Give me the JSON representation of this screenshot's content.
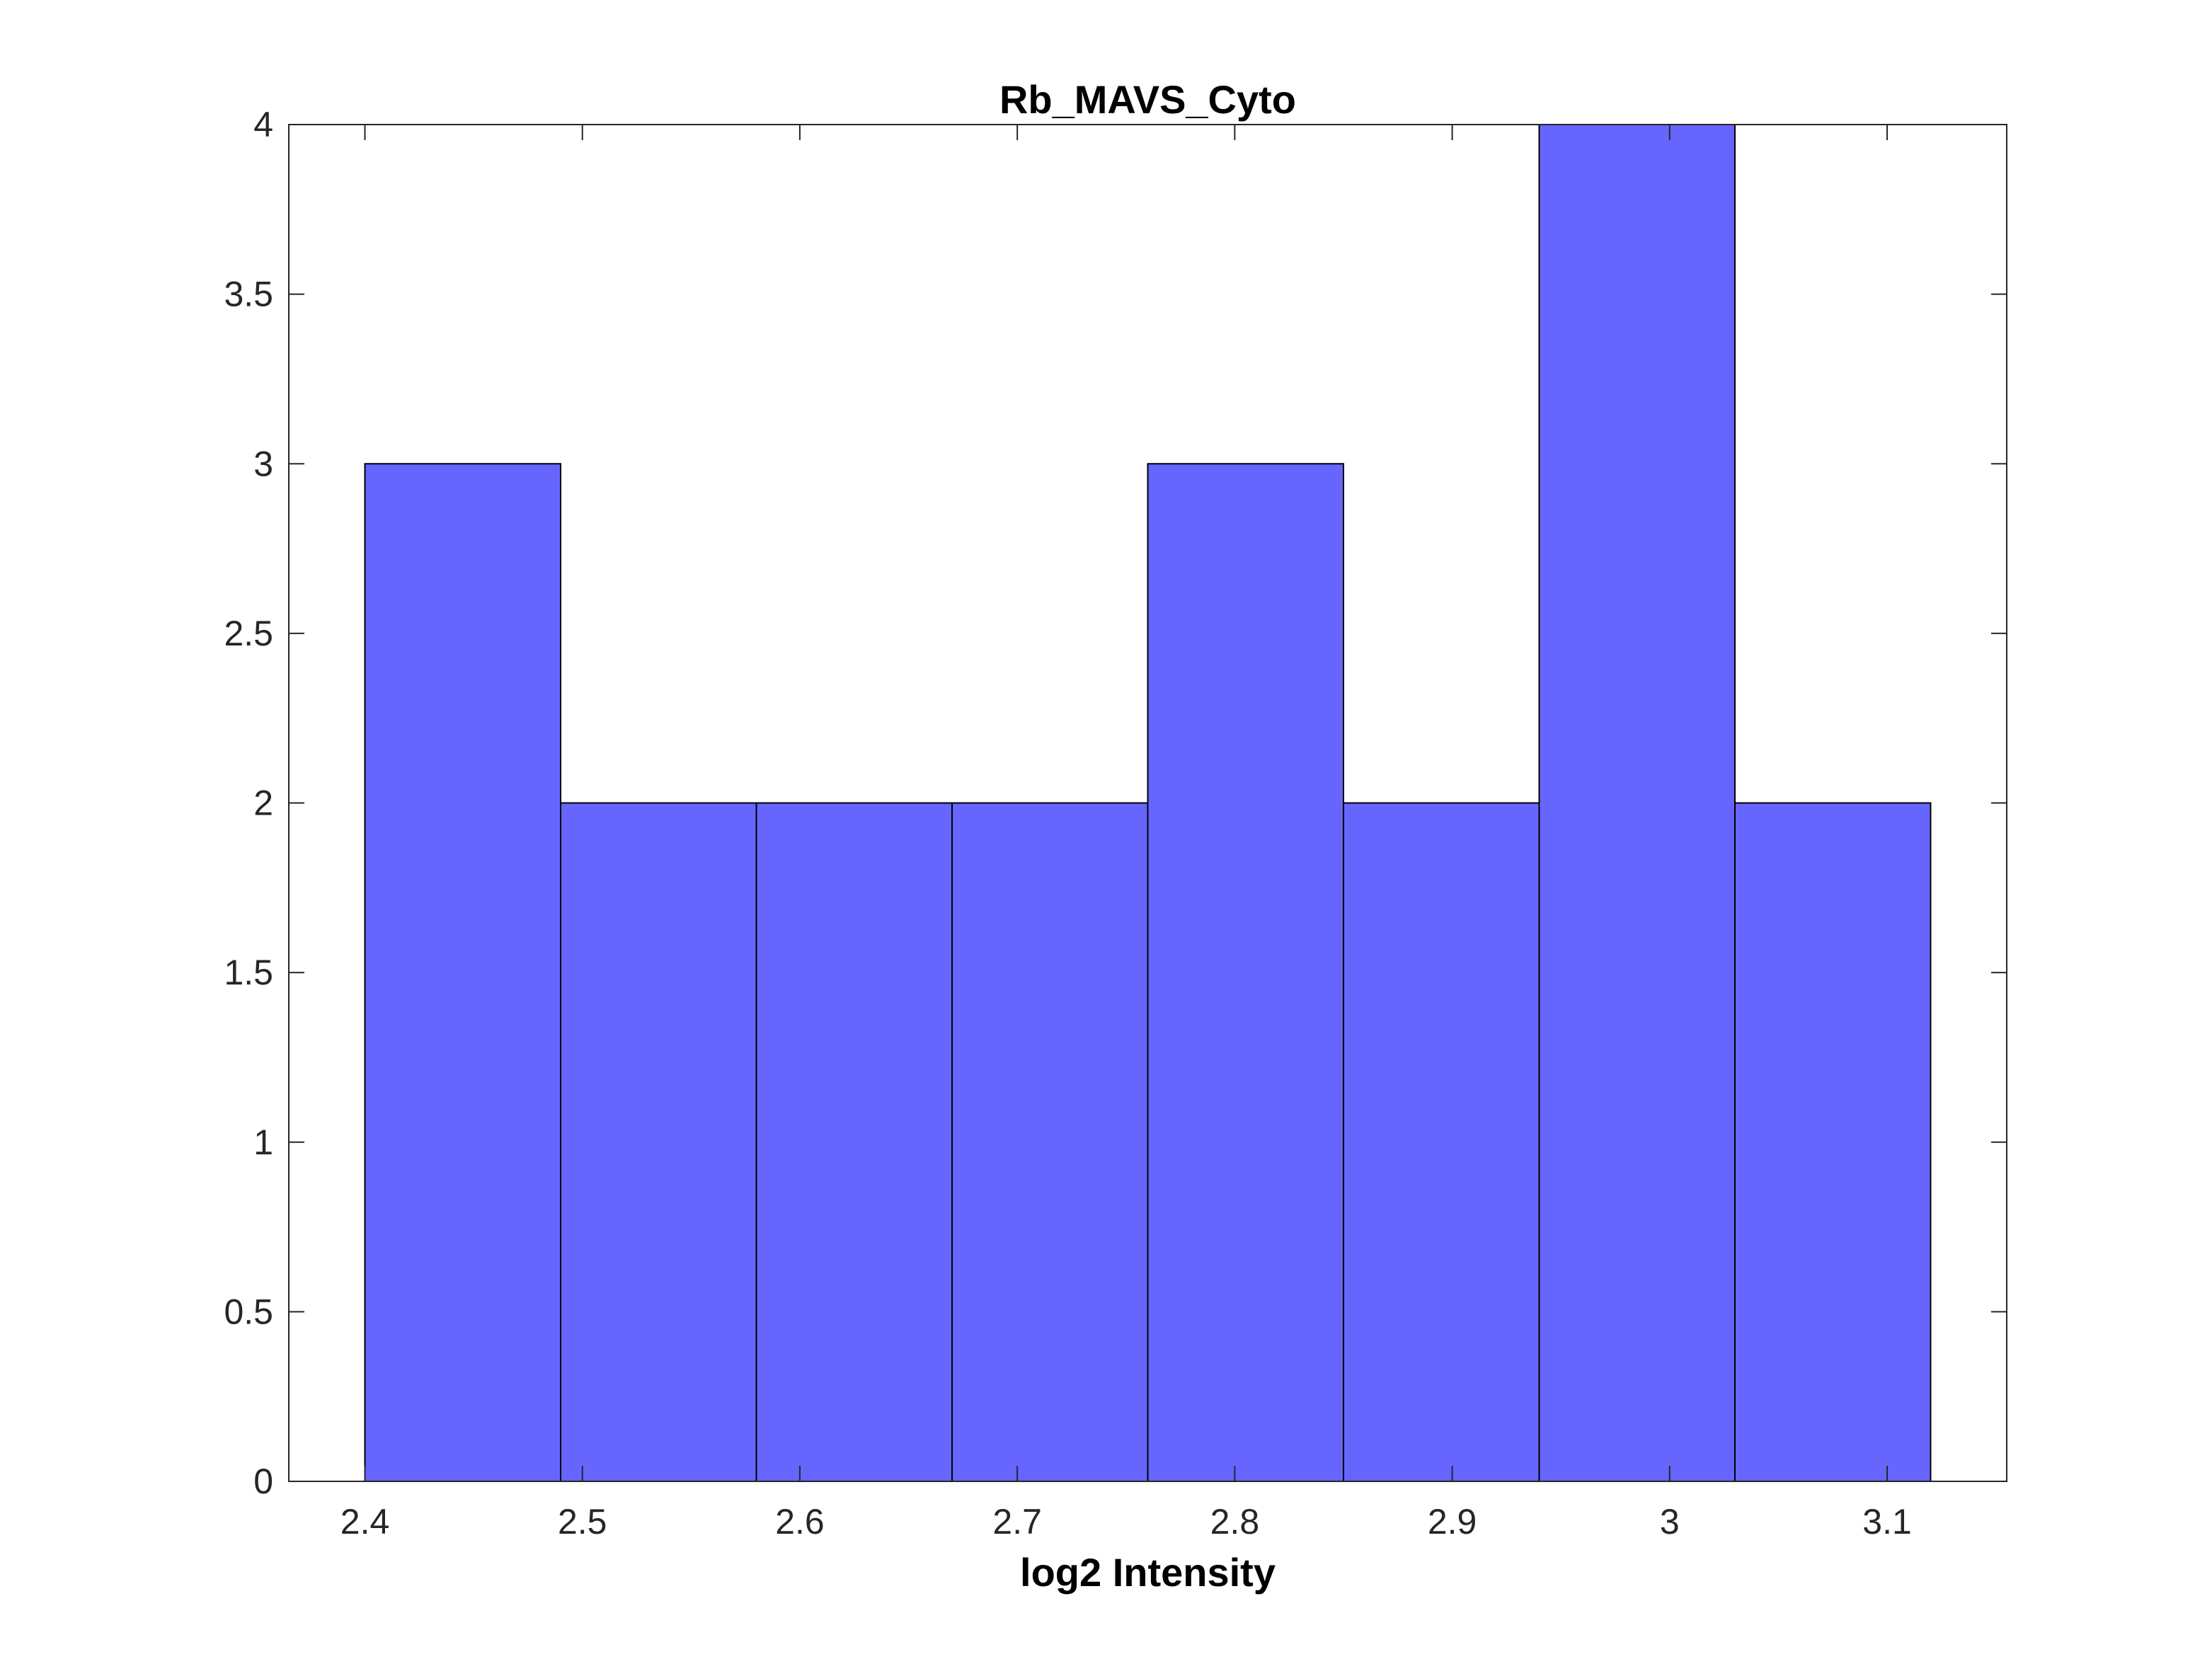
{
  "chart_data": {
    "type": "bar",
    "subtype": "histogram",
    "title": "Rb_MAVS_Cyto",
    "xlabel": "log2 Intensity",
    "ylabel": "",
    "xlim": [
      2.365,
      3.155
    ],
    "ylim": [
      0,
      4
    ],
    "bin_edges": [
      2.4,
      2.49,
      2.58,
      2.67,
      2.76,
      2.85,
      2.94,
      3.03,
      3.12
    ],
    "values": [
      3,
      2,
      2,
      2,
      3,
      2,
      4,
      2
    ],
    "x_ticks": [
      2.4,
      2.5,
      2.6,
      2.7,
      2.8,
      2.9,
      3.0,
      3.1
    ],
    "x_tick_labels": [
      "2.4",
      "2.5",
      "2.6",
      "2.7",
      "2.8",
      "2.9",
      "3",
      "3.1"
    ],
    "y_ticks": [
      0,
      0.5,
      1,
      1.5,
      2,
      2.5,
      3,
      3.5,
      4
    ],
    "y_tick_labels": [
      "0",
      "0.5",
      "1",
      "1.5",
      "2",
      "2.5",
      "3",
      "3.5",
      "4"
    ],
    "grid": false,
    "legend": "none",
    "colors": {
      "bar_fill": "#6666ff",
      "bar_edge": "#000000",
      "axis": "#262626",
      "background": "#ffffff"
    }
  }
}
